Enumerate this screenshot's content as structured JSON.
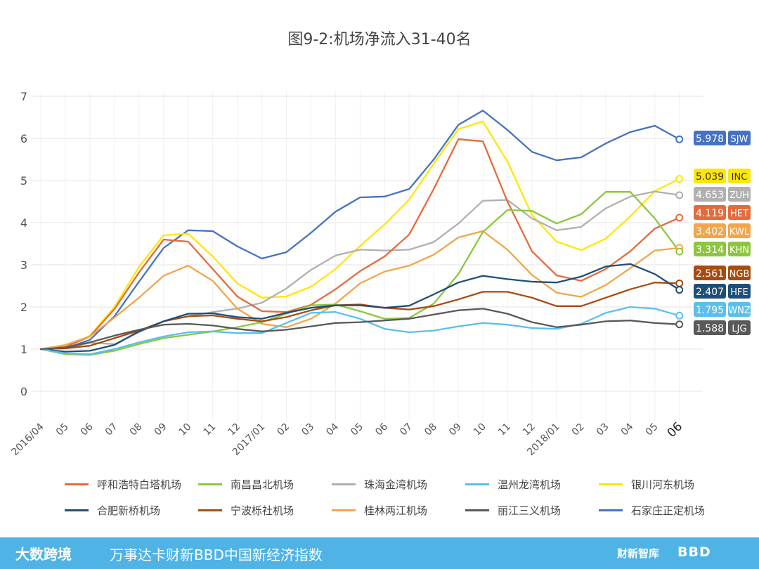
{
  "chart_data": {
    "type": "line",
    "title": "图9-2:机场净流入31-40名",
    "ylim": [
      0,
      7
    ],
    "yticks": [
      "0",
      "1",
      "2",
      "3",
      "4",
      "5",
      "6",
      "7"
    ],
    "x": [
      "2016/04",
      "05",
      "06",
      "07",
      "08",
      "09",
      "10",
      "11",
      "12",
      "2017/01",
      "02",
      "03",
      "04",
      "05",
      "06",
      "07",
      "08",
      "09",
      "10",
      "11",
      "12",
      "2018/01",
      "02",
      "03",
      "04",
      "05",
      "06"
    ],
    "series": [
      {
        "name": "石家庄正定机场",
        "code": "SJW",
        "label": "5.978",
        "color": "#4472c4",
        "values": [
          1,
          1.02,
          1.22,
          1.78,
          2.6,
          3.4,
          3.82,
          3.8,
          3.44,
          3.15,
          3.3,
          3.76,
          4.26,
          4.6,
          4.62,
          4.8,
          5.5,
          6.32,
          6.66,
          6.2,
          5.68,
          5.48,
          5.55,
          5.88,
          6.15,
          6.3,
          5.978
        ]
      },
      {
        "name": "银川河东机场",
        "code": "INC",
        "label": "5.039",
        "color": "#ffe600",
        "values": [
          1,
          1.06,
          1.32,
          2.0,
          2.95,
          3.7,
          3.74,
          3.2,
          2.56,
          2.22,
          2.25,
          2.48,
          2.9,
          3.45,
          3.96,
          4.55,
          5.4,
          6.22,
          6.4,
          5.45,
          4.18,
          3.55,
          3.35,
          3.62,
          4.15,
          4.75,
          5.039
        ]
      },
      {
        "name": "珠海金湾机场",
        "code": "ZUH",
        "label": "4.653",
        "color": "#b0b0b0",
        "values": [
          1,
          1.02,
          1.15,
          1.12,
          1.4,
          1.66,
          1.78,
          1.88,
          1.96,
          2.1,
          2.44,
          2.88,
          3.22,
          3.36,
          3.34,
          3.36,
          3.54,
          3.98,
          4.52,
          4.54,
          4.1,
          3.82,
          3.9,
          4.34,
          4.62,
          4.74,
          4.653
        ]
      },
      {
        "name": "呼和浩特白塔机场",
        "code": "HET",
        "label": "4.119",
        "color": "#e46b3b",
        "values": [
          1,
          1.05,
          1.3,
          1.95,
          2.82,
          3.6,
          3.55,
          2.9,
          2.25,
          1.9,
          1.88,
          2.05,
          2.42,
          2.85,
          3.2,
          3.72,
          4.8,
          5.98,
          5.93,
          4.5,
          3.32,
          2.75,
          2.62,
          2.9,
          3.32,
          3.86,
          4.119
        ]
      },
      {
        "name": "桂林两江机场",
        "code": "KWL",
        "label": "3.402",
        "color": "#f2a54a",
        "values": [
          1,
          1.1,
          1.3,
          1.75,
          2.22,
          2.74,
          2.98,
          2.62,
          1.96,
          1.6,
          1.52,
          1.72,
          2.08,
          2.56,
          2.84,
          2.98,
          3.24,
          3.65,
          3.8,
          3.36,
          2.76,
          2.34,
          2.24,
          2.52,
          2.92,
          3.34,
          3.402
        ]
      },
      {
        "name": "南昌昌北机场",
        "code": "KHN",
        "label": "3.314",
        "color": "#8cc63f",
        "values": [
          1,
          0.88,
          0.86,
          0.96,
          1.12,
          1.26,
          1.34,
          1.42,
          1.52,
          1.64,
          1.84,
          2.04,
          2.06,
          1.9,
          1.72,
          1.74,
          2.08,
          2.78,
          3.78,
          4.3,
          4.28,
          3.98,
          4.2,
          4.73,
          4.73,
          4.1,
          3.314
        ]
      },
      {
        "name": "宁波栎社机场",
        "code": "NGB",
        "label": "2.561",
        "color": "#a94b0e",
        "values": [
          1,
          1.02,
          1.08,
          1.26,
          1.44,
          1.66,
          1.78,
          1.8,
          1.72,
          1.66,
          1.76,
          1.92,
          2.04,
          2.06,
          1.98,
          1.94,
          2.02,
          2.18,
          2.36,
          2.36,
          2.22,
          2.02,
          2.02,
          2.22,
          2.42,
          2.58,
          2.561
        ]
      },
      {
        "name": "合肥新桥机场",
        "code": "HFE",
        "label": "2.407",
        "color": "#1f4e79",
        "values": [
          1,
          0.94,
          0.96,
          1.1,
          1.42,
          1.66,
          1.84,
          1.85,
          1.76,
          1.72,
          1.86,
          1.98,
          2.04,
          2.04,
          1.98,
          2.03,
          2.3,
          2.58,
          2.74,
          2.66,
          2.6,
          2.58,
          2.72,
          2.96,
          3.02,
          2.78,
          2.407
        ]
      },
      {
        "name": "温州龙湾机场",
        "code": "WNZ",
        "label": "1.795",
        "color": "#5ac0eb",
        "values": [
          1,
          0.9,
          0.88,
          1.0,
          1.16,
          1.3,
          1.4,
          1.42,
          1.38,
          1.38,
          1.62,
          1.86,
          1.88,
          1.72,
          1.48,
          1.4,
          1.44,
          1.54,
          1.62,
          1.58,
          1.5,
          1.48,
          1.6,
          1.86,
          2.0,
          1.96,
          1.795
        ]
      },
      {
        "name": "丽江三义机场",
        "code": "LJG",
        "label": "1.588",
        "color": "#595959",
        "values": [
          1,
          1.04,
          1.16,
          1.32,
          1.46,
          1.58,
          1.6,
          1.56,
          1.48,
          1.42,
          1.46,
          1.54,
          1.62,
          1.64,
          1.68,
          1.72,
          1.82,
          1.92,
          1.96,
          1.84,
          1.64,
          1.52,
          1.58,
          1.66,
          1.68,
          1.62,
          1.588
        ]
      }
    ],
    "legend_order": [
      "呼和浩特白塔机场",
      "南昌昌北机场",
      "珠海金湾机场",
      "温州龙湾机场",
      "银川河东机场",
      "合肥新桥机场",
      "宁波栎社机场",
      "桂林两江机场",
      "丽江三义机场",
      "石家庄正定机场"
    ],
    "end_labels_order": [
      "SJW",
      "INC",
      "ZUH",
      "HET",
      "KWL",
      "KHN",
      "NGB",
      "HFE",
      "WNZ",
      "LJG"
    ],
    "grid": true,
    "legend_position": "bottom"
  },
  "footer": {
    "logo": "大数跨境",
    "caption": "万事达卡财新BBD中国新经济指数",
    "brand1": "财新智库",
    "brand2": "BBD"
  }
}
